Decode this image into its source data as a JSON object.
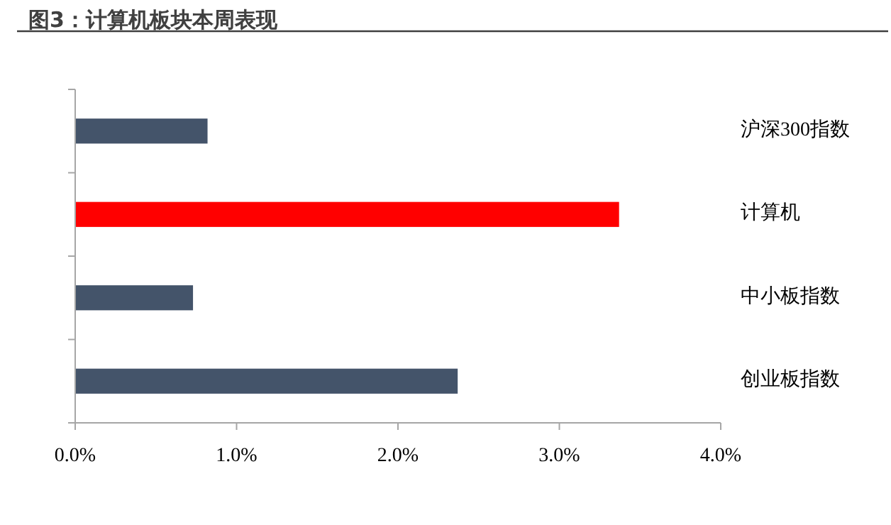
{
  "chart_data": {
    "type": "bar",
    "orientation": "horizontal",
    "title": "图3：计算机板块本周表现",
    "categories": [
      "沪深300指数",
      "计算机",
      "中小板指数",
      "创业板指数"
    ],
    "values": [
      0.82,
      3.37,
      0.73,
      2.37
    ],
    "colors": [
      "#44546a",
      "#ff0000",
      "#44546a",
      "#44546a"
    ],
    "xlim": [
      0,
      4
    ],
    "xticks": [
      {
        "value": 0,
        "label": "0.0%"
      },
      {
        "value": 1,
        "label": "1.0%"
      },
      {
        "value": 2,
        "label": "2.0%"
      },
      {
        "value": 3,
        "label": "3.0%"
      },
      {
        "value": 4,
        "label": "4.0%"
      }
    ],
    "grid": false
  }
}
